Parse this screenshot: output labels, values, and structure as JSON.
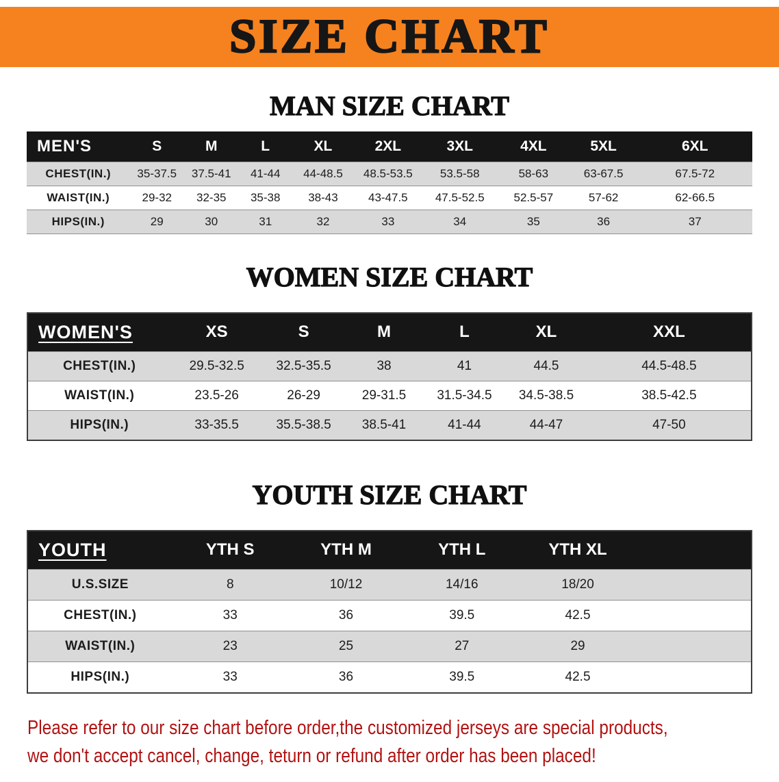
{
  "banner": {
    "title": "SIZE CHART"
  },
  "sections": [
    {
      "heading": "MAN SIZE CHART",
      "table": {
        "header": [
          "MEN'S",
          "S",
          "M",
          "L",
          "XL",
          "2XL",
          "3XL",
          "4XL",
          "5XL",
          "6XL"
        ],
        "rows": [
          {
            "label": "CHEST(IN.)",
            "values": [
              "35-37.5",
              "37.5-41",
              "41-44",
              "44-48.5",
              "48.5-53.5",
              "53.5-58",
              "58-63",
              "63-67.5",
              "67.5-72"
            ]
          },
          {
            "label": "WAIST(IN.)",
            "values": [
              "29-32",
              "32-35",
              "35-38",
              "38-43",
              "43-47.5",
              "47.5-52.5",
              "52.5-57",
              "57-62",
              "62-66.5"
            ]
          },
          {
            "label": "HIPS(IN.)",
            "values": [
              "29",
              "30",
              "31",
              "32",
              "33",
              "34",
              "35",
              "36",
              "37"
            ]
          }
        ]
      }
    },
    {
      "heading": "WOMEN SIZE CHART",
      "table": {
        "header": [
          "WOMEN'S",
          "XS",
          "S",
          "M",
          "L",
          "XL",
          "XXL"
        ],
        "rows": [
          {
            "label": "CHEST(IN.)",
            "values": [
              "29.5-32.5",
              "32.5-35.5",
              "38",
              "41",
              "44.5",
              "44.5-48.5"
            ]
          },
          {
            "label": "WAIST(IN.)",
            "values": [
              "23.5-26",
              "26-29",
              "29-31.5",
              "31.5-34.5",
              "34.5-38.5",
              "38.5-42.5"
            ]
          },
          {
            "label": "HIPS(IN.)",
            "values": [
              "33-35.5",
              "35.5-38.5",
              "38.5-41",
              "41-44",
              "44-47",
              "47-50"
            ]
          }
        ]
      }
    },
    {
      "heading": "YOUTH SIZE CHART",
      "table": {
        "header": [
          "YOUTH",
          "YTH S",
          "YTH M",
          "YTH L",
          "YTH XL"
        ],
        "rows": [
          {
            "label": "U.S.SIZE",
            "values": [
              "8",
              "10/12",
              "14/16",
              "18/20"
            ]
          },
          {
            "label": "CHEST(IN.)",
            "values": [
              "33",
              "36",
              "39.5",
              "42.5"
            ]
          },
          {
            "label": "WAIST(IN.)",
            "values": [
              "23",
              "25",
              "27",
              "29"
            ]
          },
          {
            "label": "HIPS(IN.)",
            "values": [
              "33",
              "36",
              "39.5",
              "42.5"
            ]
          }
        ]
      }
    }
  ],
  "footer": {
    "line1": "Please refer to our size chart before order,the customized jerseys are special products,",
    "line2": "we don't accept cancel, change, teturn or refund after order has been placed!"
  },
  "colors": {
    "banner_bg": "#f5821f",
    "header_bg": "#161616",
    "stripe_bg": "#d9d9d9",
    "notice_text": "#b11212"
  }
}
